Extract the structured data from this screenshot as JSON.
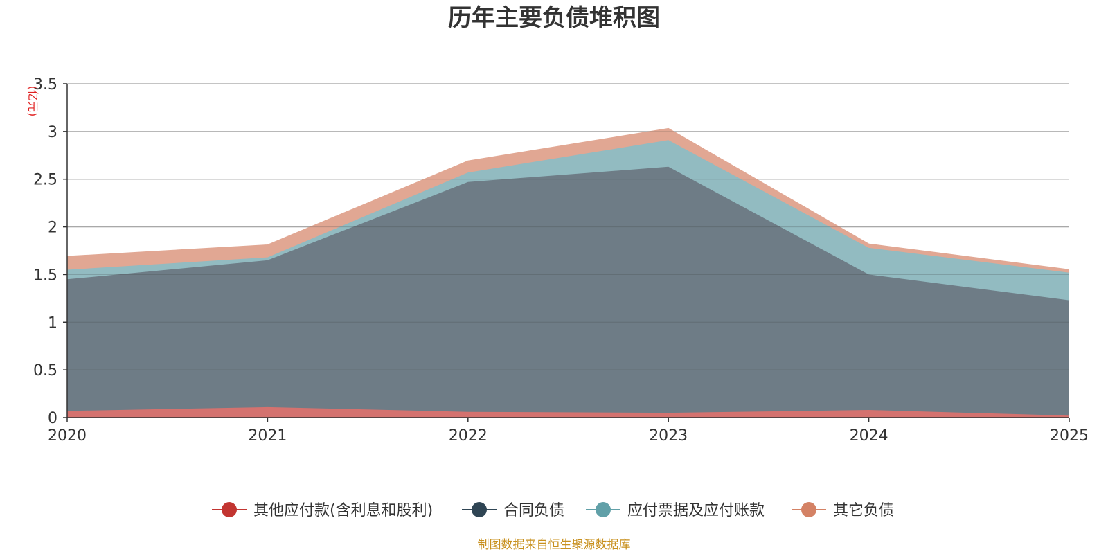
{
  "chart_data": {
    "type": "area",
    "stacked": true,
    "title": "历年主要负债堆积图",
    "ylabel": "(亿元)",
    "x": [
      "2020",
      "2021",
      "2022",
      "2023",
      "2024",
      "2025"
    ],
    "ylim": [
      0,
      3.5
    ],
    "yticks": [
      0,
      0.5,
      1,
      1.5,
      2,
      2.5,
      3,
      3.5
    ],
    "ytick_labels": [
      "0",
      "0.5",
      "1",
      "1.5",
      "2",
      "2.5",
      "3",
      "3.5"
    ],
    "grid": true,
    "legend_position": "bottom",
    "series": [
      {
        "name": "其他应付款(含利息和股利)",
        "color": "#c23531",
        "fill": "#d4726f",
        "values": [
          0.07,
          0.11,
          0.06,
          0.05,
          0.08,
          0.02
        ]
      },
      {
        "name": "合同负债",
        "color": "#2f4554",
        "fill": "#6e7c86",
        "values": [
          1.38,
          1.54,
          2.41,
          2.58,
          1.42,
          1.21
        ]
      },
      {
        "name": "应付票据及应付账款",
        "color": "#61a0a8",
        "fill": "#92bbc1",
        "values": [
          0.1,
          0.03,
          0.1,
          0.28,
          0.28,
          0.29
        ]
      },
      {
        "name": "其它负债",
        "color": "#d48265",
        "fill": "#e1a793",
        "values": [
          0.14,
          0.13,
          0.12,
          0.12,
          0.04,
          0.03
        ]
      }
    ],
    "source": "制图数据来自恒生聚源数据库"
  }
}
